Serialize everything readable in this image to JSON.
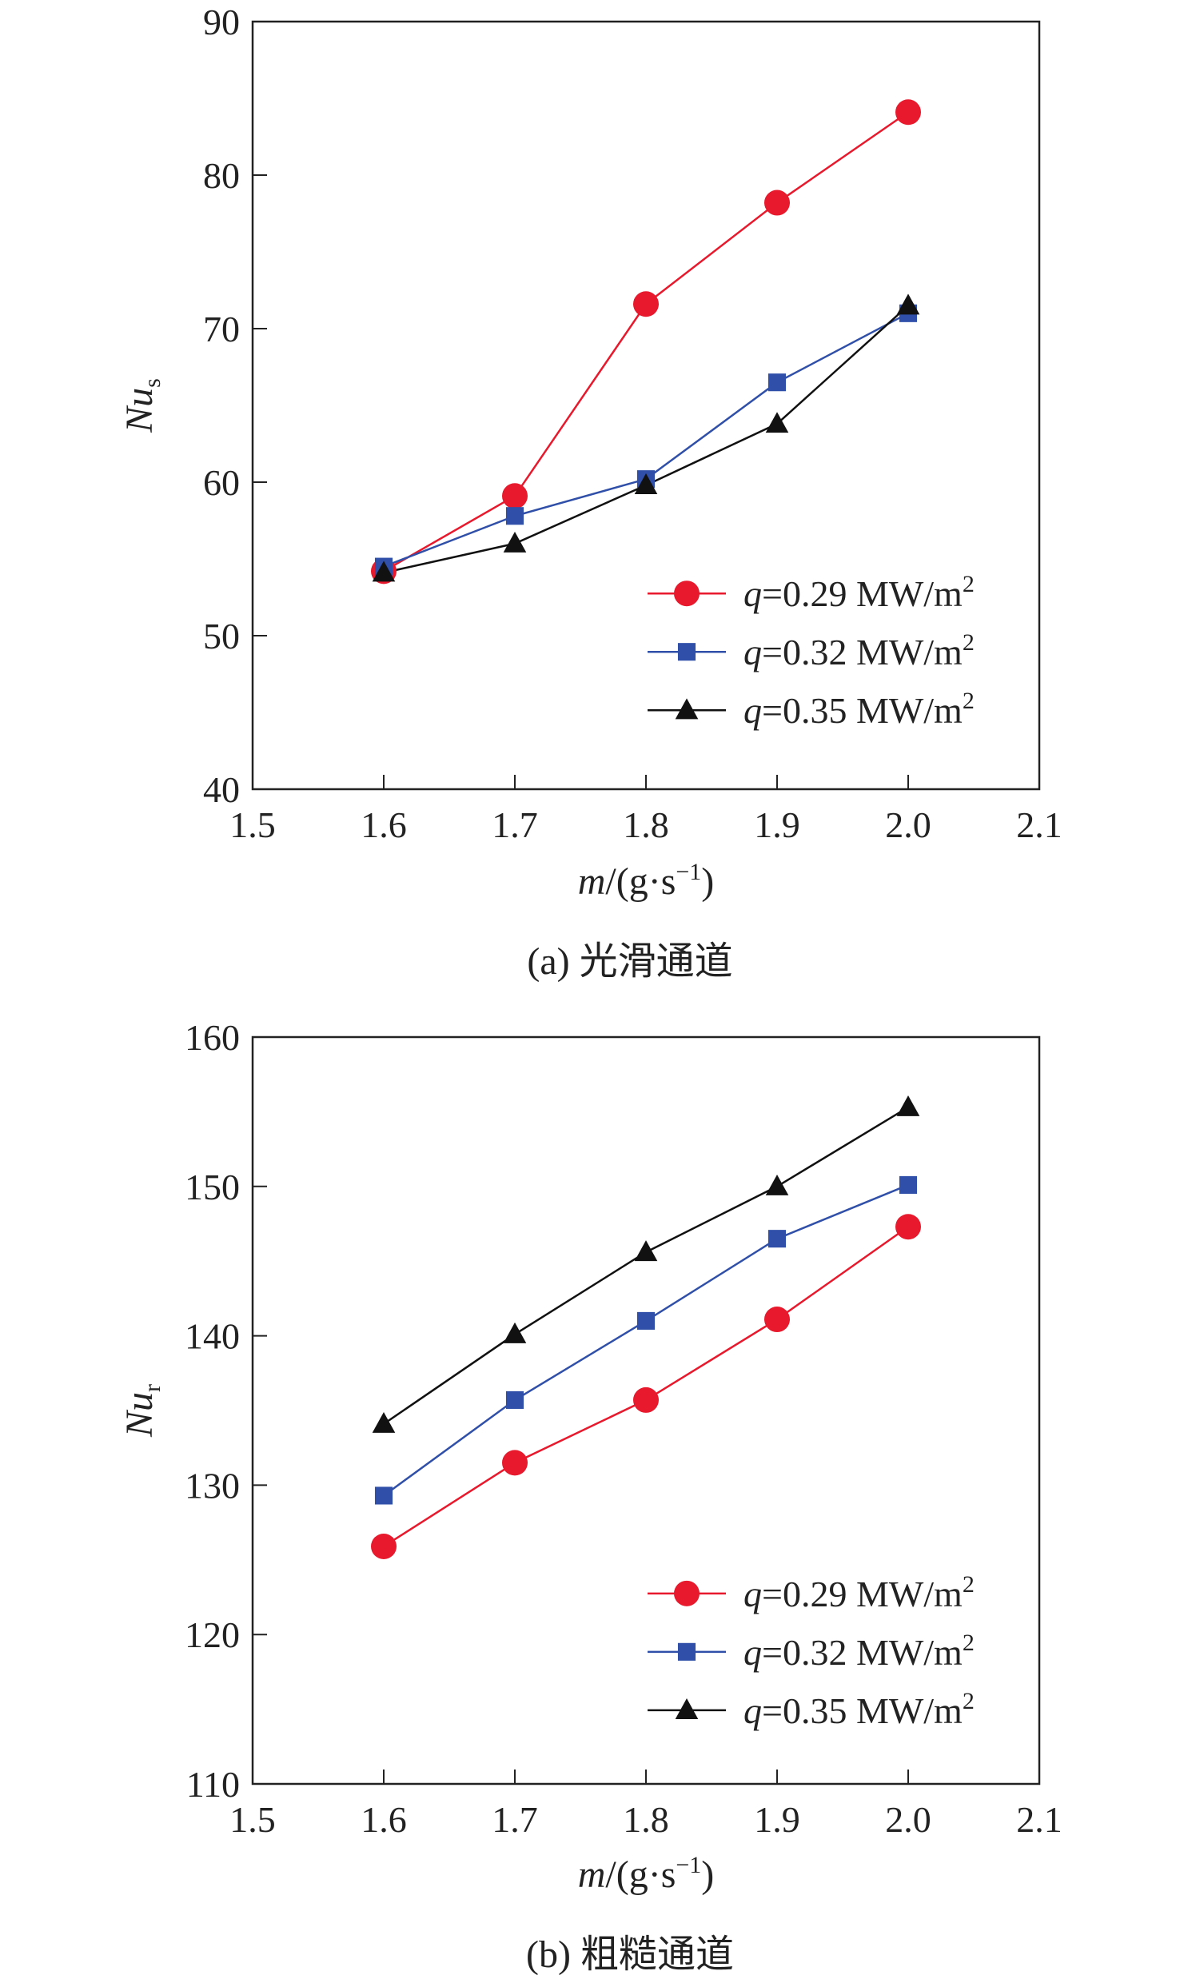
{
  "chart_data": [
    {
      "type": "line",
      "caption": "(a) 光滑通道",
      "xlabel": {
        "italic": "m",
        "rest": "/(g·s",
        "sup": "−1",
        "close": ")"
      },
      "ylabel": {
        "italic": "Nu",
        "sub": "s"
      },
      "xlim": [
        1.5,
        2.1
      ],
      "ylim": [
        40,
        90
      ],
      "xticks": [
        "1.5",
        "1.6",
        "1.7",
        "1.8",
        "1.9",
        "2.0",
        "2.1"
      ],
      "yticks": [
        "40",
        "50",
        "60",
        "70",
        "80",
        "90"
      ],
      "x": [
        1.6,
        1.7,
        1.8,
        1.9,
        2.0
      ],
      "legend_position": "bottom-right",
      "series": [
        {
          "name": "q=0.29 MW/m2",
          "label_q": "q",
          "label_rest": "=0.29 MW/m",
          "label_sup": "2",
          "marker": "circle",
          "color": "#e8192c",
          "values": [
            54.2,
            59.1,
            71.6,
            78.2,
            84.1
          ]
        },
        {
          "name": "q=0.32 MW/m2",
          "label_q": "q",
          "label_rest": "=0.32 MW/m",
          "label_sup": "2",
          "marker": "square",
          "color": "#2f4fa8",
          "values": [
            54.5,
            57.8,
            60.2,
            66.5,
            71.0
          ]
        },
        {
          "name": "q=0.35 MW/m2",
          "label_q": "q",
          "label_rest": "=0.35 MW/m",
          "label_sup": "2",
          "marker": "triangle",
          "color": "#111111",
          "values": [
            54.1,
            56.0,
            59.8,
            63.8,
            71.5
          ]
        }
      ]
    },
    {
      "type": "line",
      "caption": "(b) 粗糙通道",
      "xlabel": {
        "italic": "m",
        "rest": "/(g·s",
        "sup": "−1",
        "close": ")"
      },
      "ylabel": {
        "italic": "Nu",
        "sub": "r"
      },
      "xlim": [
        1.5,
        2.1
      ],
      "ylim": [
        110,
        160
      ],
      "xticks": [
        "1.5",
        "1.6",
        "1.7",
        "1.8",
        "1.9",
        "2.0",
        "2.1"
      ],
      "yticks": [
        "110",
        "120",
        "130",
        "140",
        "150",
        "160"
      ],
      "x": [
        1.6,
        1.7,
        1.8,
        1.9,
        2.0
      ],
      "legend_position": "bottom-right",
      "series": [
        {
          "name": "q=0.29 MW/m2",
          "label_q": "q",
          "label_rest": "=0.29 MW/m",
          "label_sup": "2",
          "marker": "circle",
          "color": "#e8192c",
          "values": [
            125.9,
            131.5,
            135.7,
            141.1,
            147.3
          ]
        },
        {
          "name": "q=0.32 MW/m2",
          "label_q": "q",
          "label_rest": "=0.32 MW/m",
          "label_sup": "2",
          "marker": "square",
          "color": "#2f4fa8",
          "values": [
            129.3,
            135.7,
            141.0,
            146.5,
            150.1
          ]
        },
        {
          "name": "q=0.35 MW/m2",
          "label_q": "q",
          "label_rest": "=0.35 MW/m",
          "label_sup": "2",
          "marker": "triangle",
          "color": "#111111",
          "values": [
            134.1,
            140.1,
            145.6,
            150.0,
            155.3
          ]
        }
      ]
    }
  ]
}
